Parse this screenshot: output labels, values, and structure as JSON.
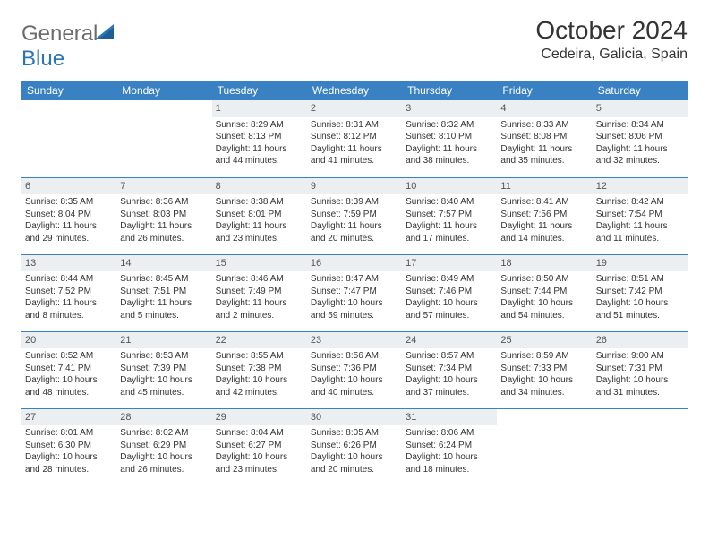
{
  "branding": {
    "logo_text_1": "General",
    "logo_text_2": "Blue",
    "logo_colors": {
      "text_gray": "#6b6b6b",
      "blue": "#2a74b8"
    }
  },
  "header": {
    "month_title": "October 2024",
    "location": "Cedeira, Galicia, Spain"
  },
  "style": {
    "header_bg": "#3a81c4",
    "header_text": "#ffffff",
    "daynum_bg": "#eceff1",
    "row_border": "#3a81c4",
    "body_text": "#333333",
    "page_bg": "#ffffff",
    "header_font_size": 12,
    "cell_font_size": 10,
    "title_font_size": 28,
    "location_font_size": 16
  },
  "day_names": [
    "Sunday",
    "Monday",
    "Tuesday",
    "Wednesday",
    "Thursday",
    "Friday",
    "Saturday"
  ],
  "weeks": [
    [
      null,
      null,
      {
        "n": "1",
        "sr": "Sunrise: 8:29 AM",
        "ss": "Sunset: 8:13 PM",
        "dl": "Daylight: 11 hours and 44 minutes."
      },
      {
        "n": "2",
        "sr": "Sunrise: 8:31 AM",
        "ss": "Sunset: 8:12 PM",
        "dl": "Daylight: 11 hours and 41 minutes."
      },
      {
        "n": "3",
        "sr": "Sunrise: 8:32 AM",
        "ss": "Sunset: 8:10 PM",
        "dl": "Daylight: 11 hours and 38 minutes."
      },
      {
        "n": "4",
        "sr": "Sunrise: 8:33 AM",
        "ss": "Sunset: 8:08 PM",
        "dl": "Daylight: 11 hours and 35 minutes."
      },
      {
        "n": "5",
        "sr": "Sunrise: 8:34 AM",
        "ss": "Sunset: 8:06 PM",
        "dl": "Daylight: 11 hours and 32 minutes."
      }
    ],
    [
      {
        "n": "6",
        "sr": "Sunrise: 8:35 AM",
        "ss": "Sunset: 8:04 PM",
        "dl": "Daylight: 11 hours and 29 minutes."
      },
      {
        "n": "7",
        "sr": "Sunrise: 8:36 AM",
        "ss": "Sunset: 8:03 PM",
        "dl": "Daylight: 11 hours and 26 minutes."
      },
      {
        "n": "8",
        "sr": "Sunrise: 8:38 AM",
        "ss": "Sunset: 8:01 PM",
        "dl": "Daylight: 11 hours and 23 minutes."
      },
      {
        "n": "9",
        "sr": "Sunrise: 8:39 AM",
        "ss": "Sunset: 7:59 PM",
        "dl": "Daylight: 11 hours and 20 minutes."
      },
      {
        "n": "10",
        "sr": "Sunrise: 8:40 AM",
        "ss": "Sunset: 7:57 PM",
        "dl": "Daylight: 11 hours and 17 minutes."
      },
      {
        "n": "11",
        "sr": "Sunrise: 8:41 AM",
        "ss": "Sunset: 7:56 PM",
        "dl": "Daylight: 11 hours and 14 minutes."
      },
      {
        "n": "12",
        "sr": "Sunrise: 8:42 AM",
        "ss": "Sunset: 7:54 PM",
        "dl": "Daylight: 11 hours and 11 minutes."
      }
    ],
    [
      {
        "n": "13",
        "sr": "Sunrise: 8:44 AM",
        "ss": "Sunset: 7:52 PM",
        "dl": "Daylight: 11 hours and 8 minutes."
      },
      {
        "n": "14",
        "sr": "Sunrise: 8:45 AM",
        "ss": "Sunset: 7:51 PM",
        "dl": "Daylight: 11 hours and 5 minutes."
      },
      {
        "n": "15",
        "sr": "Sunrise: 8:46 AM",
        "ss": "Sunset: 7:49 PM",
        "dl": "Daylight: 11 hours and 2 minutes."
      },
      {
        "n": "16",
        "sr": "Sunrise: 8:47 AM",
        "ss": "Sunset: 7:47 PM",
        "dl": "Daylight: 10 hours and 59 minutes."
      },
      {
        "n": "17",
        "sr": "Sunrise: 8:49 AM",
        "ss": "Sunset: 7:46 PM",
        "dl": "Daylight: 10 hours and 57 minutes."
      },
      {
        "n": "18",
        "sr": "Sunrise: 8:50 AM",
        "ss": "Sunset: 7:44 PM",
        "dl": "Daylight: 10 hours and 54 minutes."
      },
      {
        "n": "19",
        "sr": "Sunrise: 8:51 AM",
        "ss": "Sunset: 7:42 PM",
        "dl": "Daylight: 10 hours and 51 minutes."
      }
    ],
    [
      {
        "n": "20",
        "sr": "Sunrise: 8:52 AM",
        "ss": "Sunset: 7:41 PM",
        "dl": "Daylight: 10 hours and 48 minutes."
      },
      {
        "n": "21",
        "sr": "Sunrise: 8:53 AM",
        "ss": "Sunset: 7:39 PM",
        "dl": "Daylight: 10 hours and 45 minutes."
      },
      {
        "n": "22",
        "sr": "Sunrise: 8:55 AM",
        "ss": "Sunset: 7:38 PM",
        "dl": "Daylight: 10 hours and 42 minutes."
      },
      {
        "n": "23",
        "sr": "Sunrise: 8:56 AM",
        "ss": "Sunset: 7:36 PM",
        "dl": "Daylight: 10 hours and 40 minutes."
      },
      {
        "n": "24",
        "sr": "Sunrise: 8:57 AM",
        "ss": "Sunset: 7:34 PM",
        "dl": "Daylight: 10 hours and 37 minutes."
      },
      {
        "n": "25",
        "sr": "Sunrise: 8:59 AM",
        "ss": "Sunset: 7:33 PM",
        "dl": "Daylight: 10 hours and 34 minutes."
      },
      {
        "n": "26",
        "sr": "Sunrise: 9:00 AM",
        "ss": "Sunset: 7:31 PM",
        "dl": "Daylight: 10 hours and 31 minutes."
      }
    ],
    [
      {
        "n": "27",
        "sr": "Sunrise: 8:01 AM",
        "ss": "Sunset: 6:30 PM",
        "dl": "Daylight: 10 hours and 28 minutes."
      },
      {
        "n": "28",
        "sr": "Sunrise: 8:02 AM",
        "ss": "Sunset: 6:29 PM",
        "dl": "Daylight: 10 hours and 26 minutes."
      },
      {
        "n": "29",
        "sr": "Sunrise: 8:04 AM",
        "ss": "Sunset: 6:27 PM",
        "dl": "Daylight: 10 hours and 23 minutes."
      },
      {
        "n": "30",
        "sr": "Sunrise: 8:05 AM",
        "ss": "Sunset: 6:26 PM",
        "dl": "Daylight: 10 hours and 20 minutes."
      },
      {
        "n": "31",
        "sr": "Sunrise: 8:06 AM",
        "ss": "Sunset: 6:24 PM",
        "dl": "Daylight: 10 hours and 18 minutes."
      },
      null,
      null
    ]
  ]
}
